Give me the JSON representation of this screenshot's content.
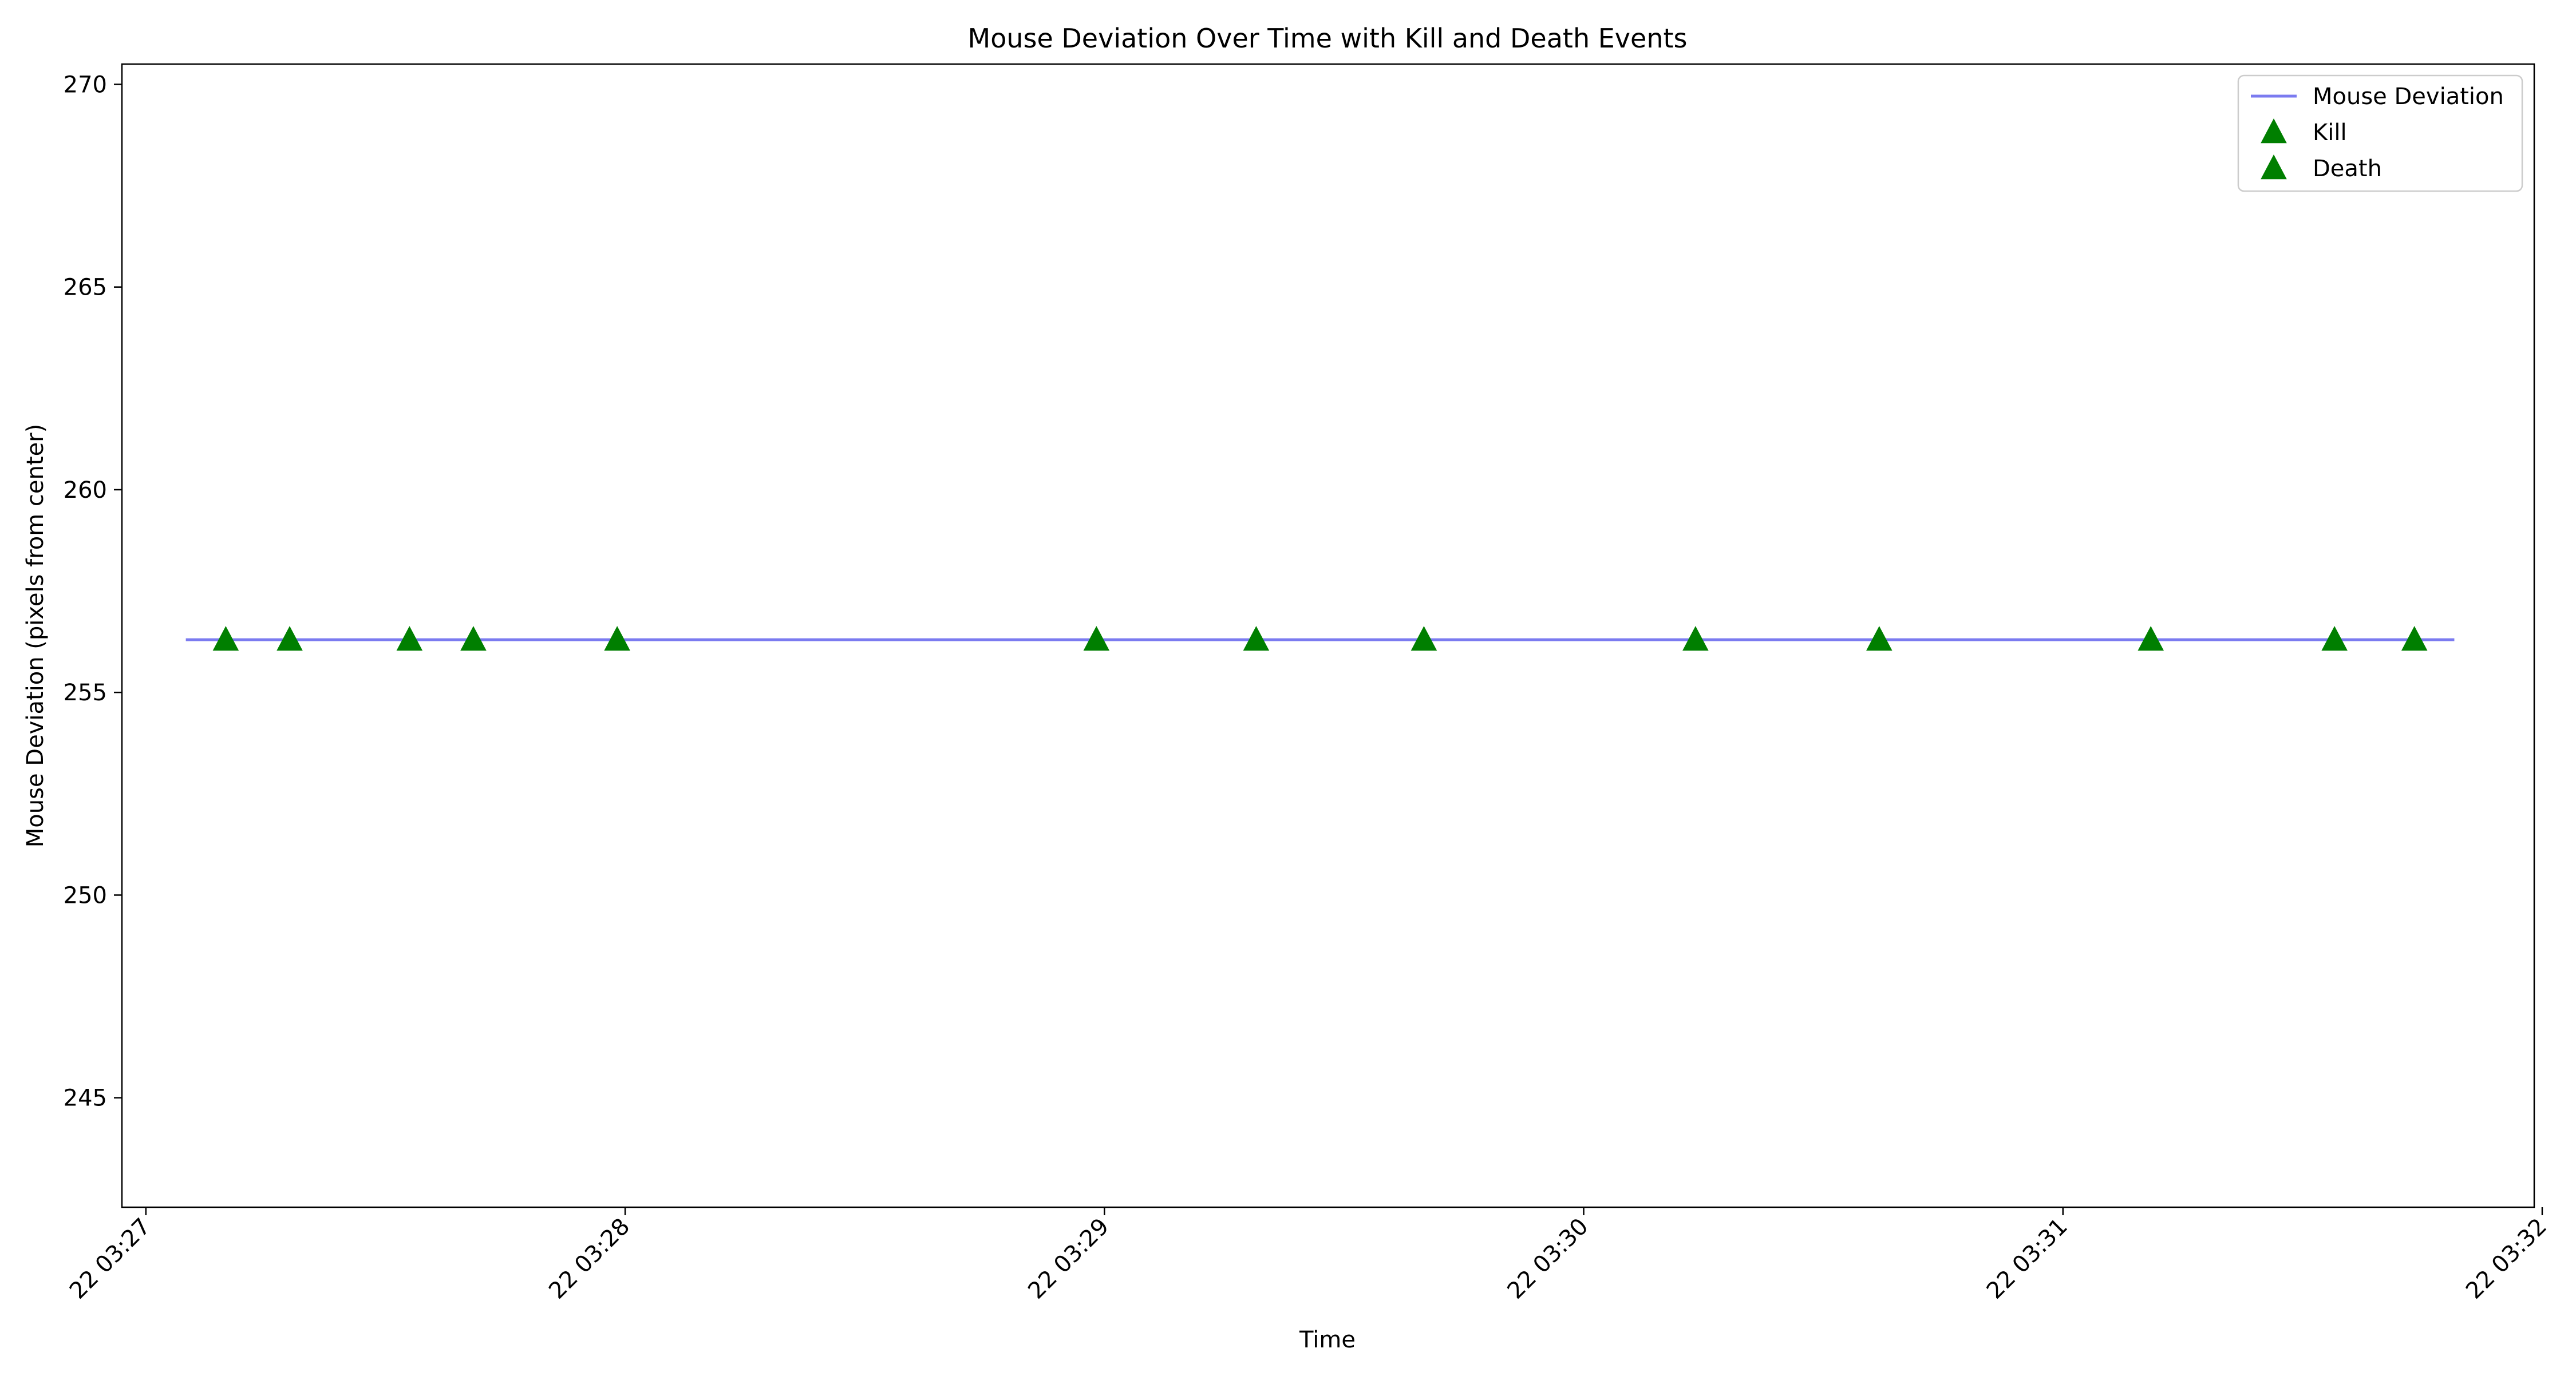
{
  "chart_data": {
    "type": "line",
    "title": "Mouse Deviation Over Time with Kill and Death Events",
    "xlabel": "Time",
    "ylabel": "Mouse Deviation (pixels from center)",
    "x_scale": "time (HH:MM:SS)",
    "xlim": [
      "03:26:57",
      "03:31:59"
    ],
    "ylim": [
      242.3,
      270.5
    ],
    "x_ticks": [
      "03:27:00",
      "03:28:00",
      "03:29:00",
      "03:30:00",
      "03:31:00",
      "03:32:00"
    ],
    "x_tick_labels": [
      "22 03:27",
      "22 03:28",
      "22 03:29",
      "22 03:30",
      "22 03:31",
      "22 03:32"
    ],
    "y_ticks": [
      245,
      250,
      255,
      260,
      265,
      270
    ],
    "y_tick_labels": [
      "245",
      "250",
      "255",
      "260",
      "265",
      "270"
    ],
    "grid": false,
    "legend_position": "top-right",
    "series": [
      {
        "name": "Mouse Deviation",
        "kind": "line",
        "color": "#7b7bf0",
        "x": [
          "03:27:05",
          "03:31:49"
        ],
        "y": [
          256.3,
          256.3
        ]
      },
      {
        "name": "Kill",
        "kind": "scatter",
        "marker": "triangle-up",
        "color": "#007f00",
        "x": [
          "03:27:10",
          "03:27:18",
          "03:27:33",
          "03:27:41",
          "03:27:59",
          "03:28:59",
          "03:29:19",
          "03:29:40",
          "03:30:14",
          "03:30:37",
          "03:31:11",
          "03:31:34",
          "03:31:44"
        ],
        "y": [
          256.3,
          256.3,
          256.3,
          256.3,
          256.3,
          256.3,
          256.3,
          256.3,
          256.3,
          256.3,
          256.3,
          256.3,
          256.3
        ]
      },
      {
        "name": "Death",
        "kind": "scatter",
        "marker": "triangle-up",
        "color": "#007f00",
        "x": [],
        "y": []
      }
    ]
  }
}
